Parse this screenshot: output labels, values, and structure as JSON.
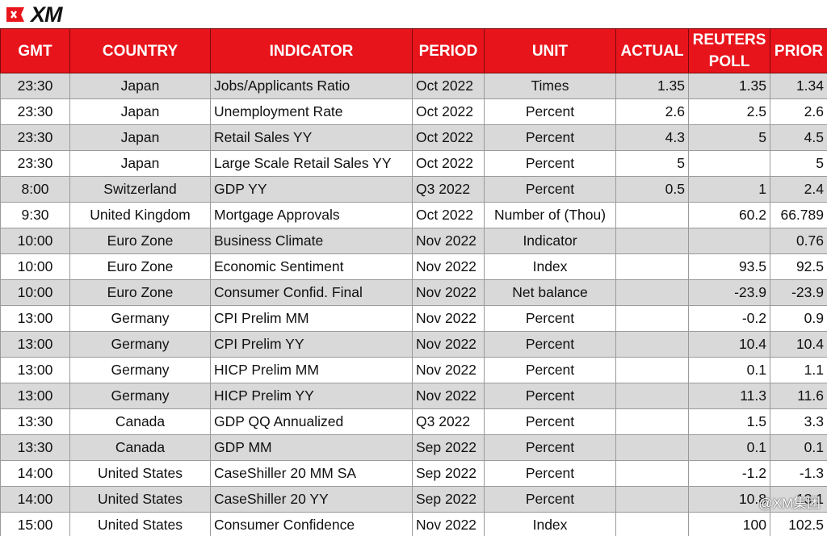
{
  "header": {
    "logo": "XM"
  },
  "table": {
    "columns": [
      "GMT",
      "COUNTRY",
      "INDICATOR",
      "PERIOD",
      "UNIT",
      "ACTUAL",
      "REUTERS POLL",
      "PRIOR"
    ],
    "rows": [
      [
        "23:30",
        "Japan",
        "Jobs/Applicants Ratio",
        "Oct 2022",
        "Times",
        "1.35",
        "1.35",
        "1.34"
      ],
      [
        "23:30",
        "Japan",
        "Unemployment Rate",
        "Oct 2022",
        "Percent",
        "2.6",
        "2.5",
        "2.6"
      ],
      [
        "23:30",
        "Japan",
        "Retail Sales YY",
        "Oct 2022",
        "Percent",
        "4.3",
        "5",
        "4.5"
      ],
      [
        "23:30",
        "Japan",
        "Large Scale Retail Sales YY",
        "Oct 2022",
        "Percent",
        "5",
        null,
        "5"
      ],
      [
        "8:00",
        "Switzerland",
        "GDP YY",
        "Q3 2022",
        "Percent",
        "0.5",
        "1",
        "2.4"
      ],
      [
        "9:30",
        "United Kingdom",
        "Mortgage Approvals",
        "Oct 2022",
        "Number of (Thou)",
        null,
        "60.2",
        "66.789"
      ],
      [
        "10:00",
        "Euro Zone",
        "Business Climate",
        "Nov 2022",
        "Indicator",
        null,
        null,
        "0.76"
      ],
      [
        "10:00",
        "Euro Zone",
        "Economic Sentiment",
        "Nov 2022",
        "Index",
        null,
        "93.5",
        "92.5"
      ],
      [
        "10:00",
        "Euro Zone",
        "Consumer Confid. Final",
        "Nov 2022",
        "Net balance",
        null,
        "-23.9",
        "-23.9"
      ],
      [
        "13:00",
        "Germany",
        "CPI Prelim MM",
        "Nov 2022",
        "Percent",
        null,
        "-0.2",
        "0.9"
      ],
      [
        "13:00",
        "Germany",
        "CPI Prelim YY",
        "Nov 2022",
        "Percent",
        null,
        "10.4",
        "10.4"
      ],
      [
        "13:00",
        "Germany",
        "HICP Prelim MM",
        "Nov 2022",
        "Percent",
        null,
        "0.1",
        "1.1"
      ],
      [
        "13:00",
        "Germany",
        "HICP Prelim YY",
        "Nov 2022",
        "Percent",
        null,
        "11.3",
        "11.6"
      ],
      [
        "13:30",
        "Canada",
        "GDP QQ Annualized",
        "Q3 2022",
        "Percent",
        null,
        "1.5",
        "3.3"
      ],
      [
        "13:30",
        "Canada",
        "GDP MM",
        "Sep 2022",
        "Percent",
        null,
        "0.1",
        "0.1"
      ],
      [
        "14:00",
        "United States",
        "CaseShiller 20 MM SA",
        "Sep 2022",
        "Percent",
        null,
        "-1.2",
        "-1.3"
      ],
      [
        "14:00",
        "United States",
        "CaseShiller 20 YY",
        "Sep 2022",
        "Percent",
        null,
        "10.8",
        "13.1"
      ],
      [
        "15:00",
        "United States",
        "Consumer Confidence",
        "Nov 2022",
        "Index",
        null,
        "100",
        "102.5"
      ]
    ]
  },
  "watermark": "@XM集团"
}
